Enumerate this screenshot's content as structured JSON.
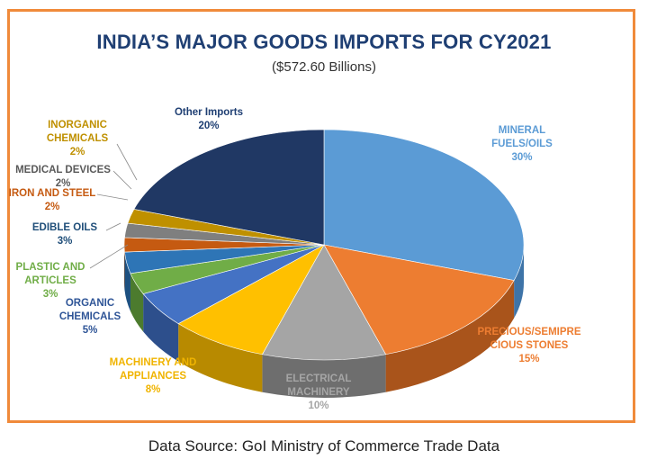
{
  "chart_data": {
    "type": "pie",
    "title": "INDIA’S MAJOR GOODS IMPORTS FOR CY2021",
    "subtitle": "($572.60 Billions)",
    "source": "Data Source: GoI Ministry of Commerce Trade Data",
    "slices": [
      {
        "label_lines": [
          "MINERAL",
          "FUELS/OILS"
        ],
        "value": 30,
        "pct": "30%",
        "color": "#5b9bd5",
        "side": "#3e74a8",
        "label_color": "#5b9bd5"
      },
      {
        "label_lines": [
          "PRECIOUS/SEMIPRE",
          "CIOUS STONES"
        ],
        "value": 15,
        "pct": "15%",
        "color": "#ed7d31",
        "side": "#a9541b",
        "label_color": "#ed7d31"
      },
      {
        "label_lines": [
          "ELECTRICAL",
          "MACHINERY"
        ],
        "value": 10,
        "pct": "10%",
        "color": "#a5a5a5",
        "side": "#6e6e6e",
        "label_color": "#a5a5a5"
      },
      {
        "label_lines": [
          "MACHINERY AND",
          "APPLIANCES"
        ],
        "value": 8,
        "pct": "8%",
        "color": "#ffc000",
        "side": "#b88a00",
        "label_color": "#f0b400"
      },
      {
        "label_lines": [
          "ORGANIC",
          "CHEMICALS"
        ],
        "value": 5,
        "pct": "5%",
        "color": "#4472c4",
        "side": "#2d4f8c",
        "label_color": "#2f5597"
      },
      {
        "label_lines": [
          "PLASTIC AND",
          "ARTICLES"
        ],
        "value": 3,
        "pct": "3%",
        "color": "#70ad47",
        "side": "#4c7b2e",
        "label_color": "#70ad47"
      },
      {
        "label_lines": [
          "EDIBLE OILS"
        ],
        "value": 3,
        "pct": "3%",
        "color": "#2e75b6",
        "side": "#1d5080",
        "label_color": "#1f4e79"
      },
      {
        "label_lines": [
          "IRON AND STEEL"
        ],
        "value": 2,
        "pct": "2%",
        "color": "#c55a11",
        "side": "#8a3d0a",
        "label_color": "#c55a11"
      },
      {
        "label_lines": [
          "MEDICAL DEVICES"
        ],
        "value": 2,
        "pct": "2%",
        "color": "#7f7f7f",
        "side": "#545454",
        "label_color": "#595959"
      },
      {
        "label_lines": [
          "INORGANIC",
          "CHEMICALS"
        ],
        "value": 2,
        "pct": "2%",
        "color": "#bf9000",
        "side": "#7f6000",
        "label_color": "#bf9000"
      },
      {
        "label_lines": [
          "Other Imports"
        ],
        "value": 20,
        "pct": "20%",
        "color": "#203864",
        "side": "#14243f",
        "label_color": "#1f3f73"
      }
    ]
  }
}
